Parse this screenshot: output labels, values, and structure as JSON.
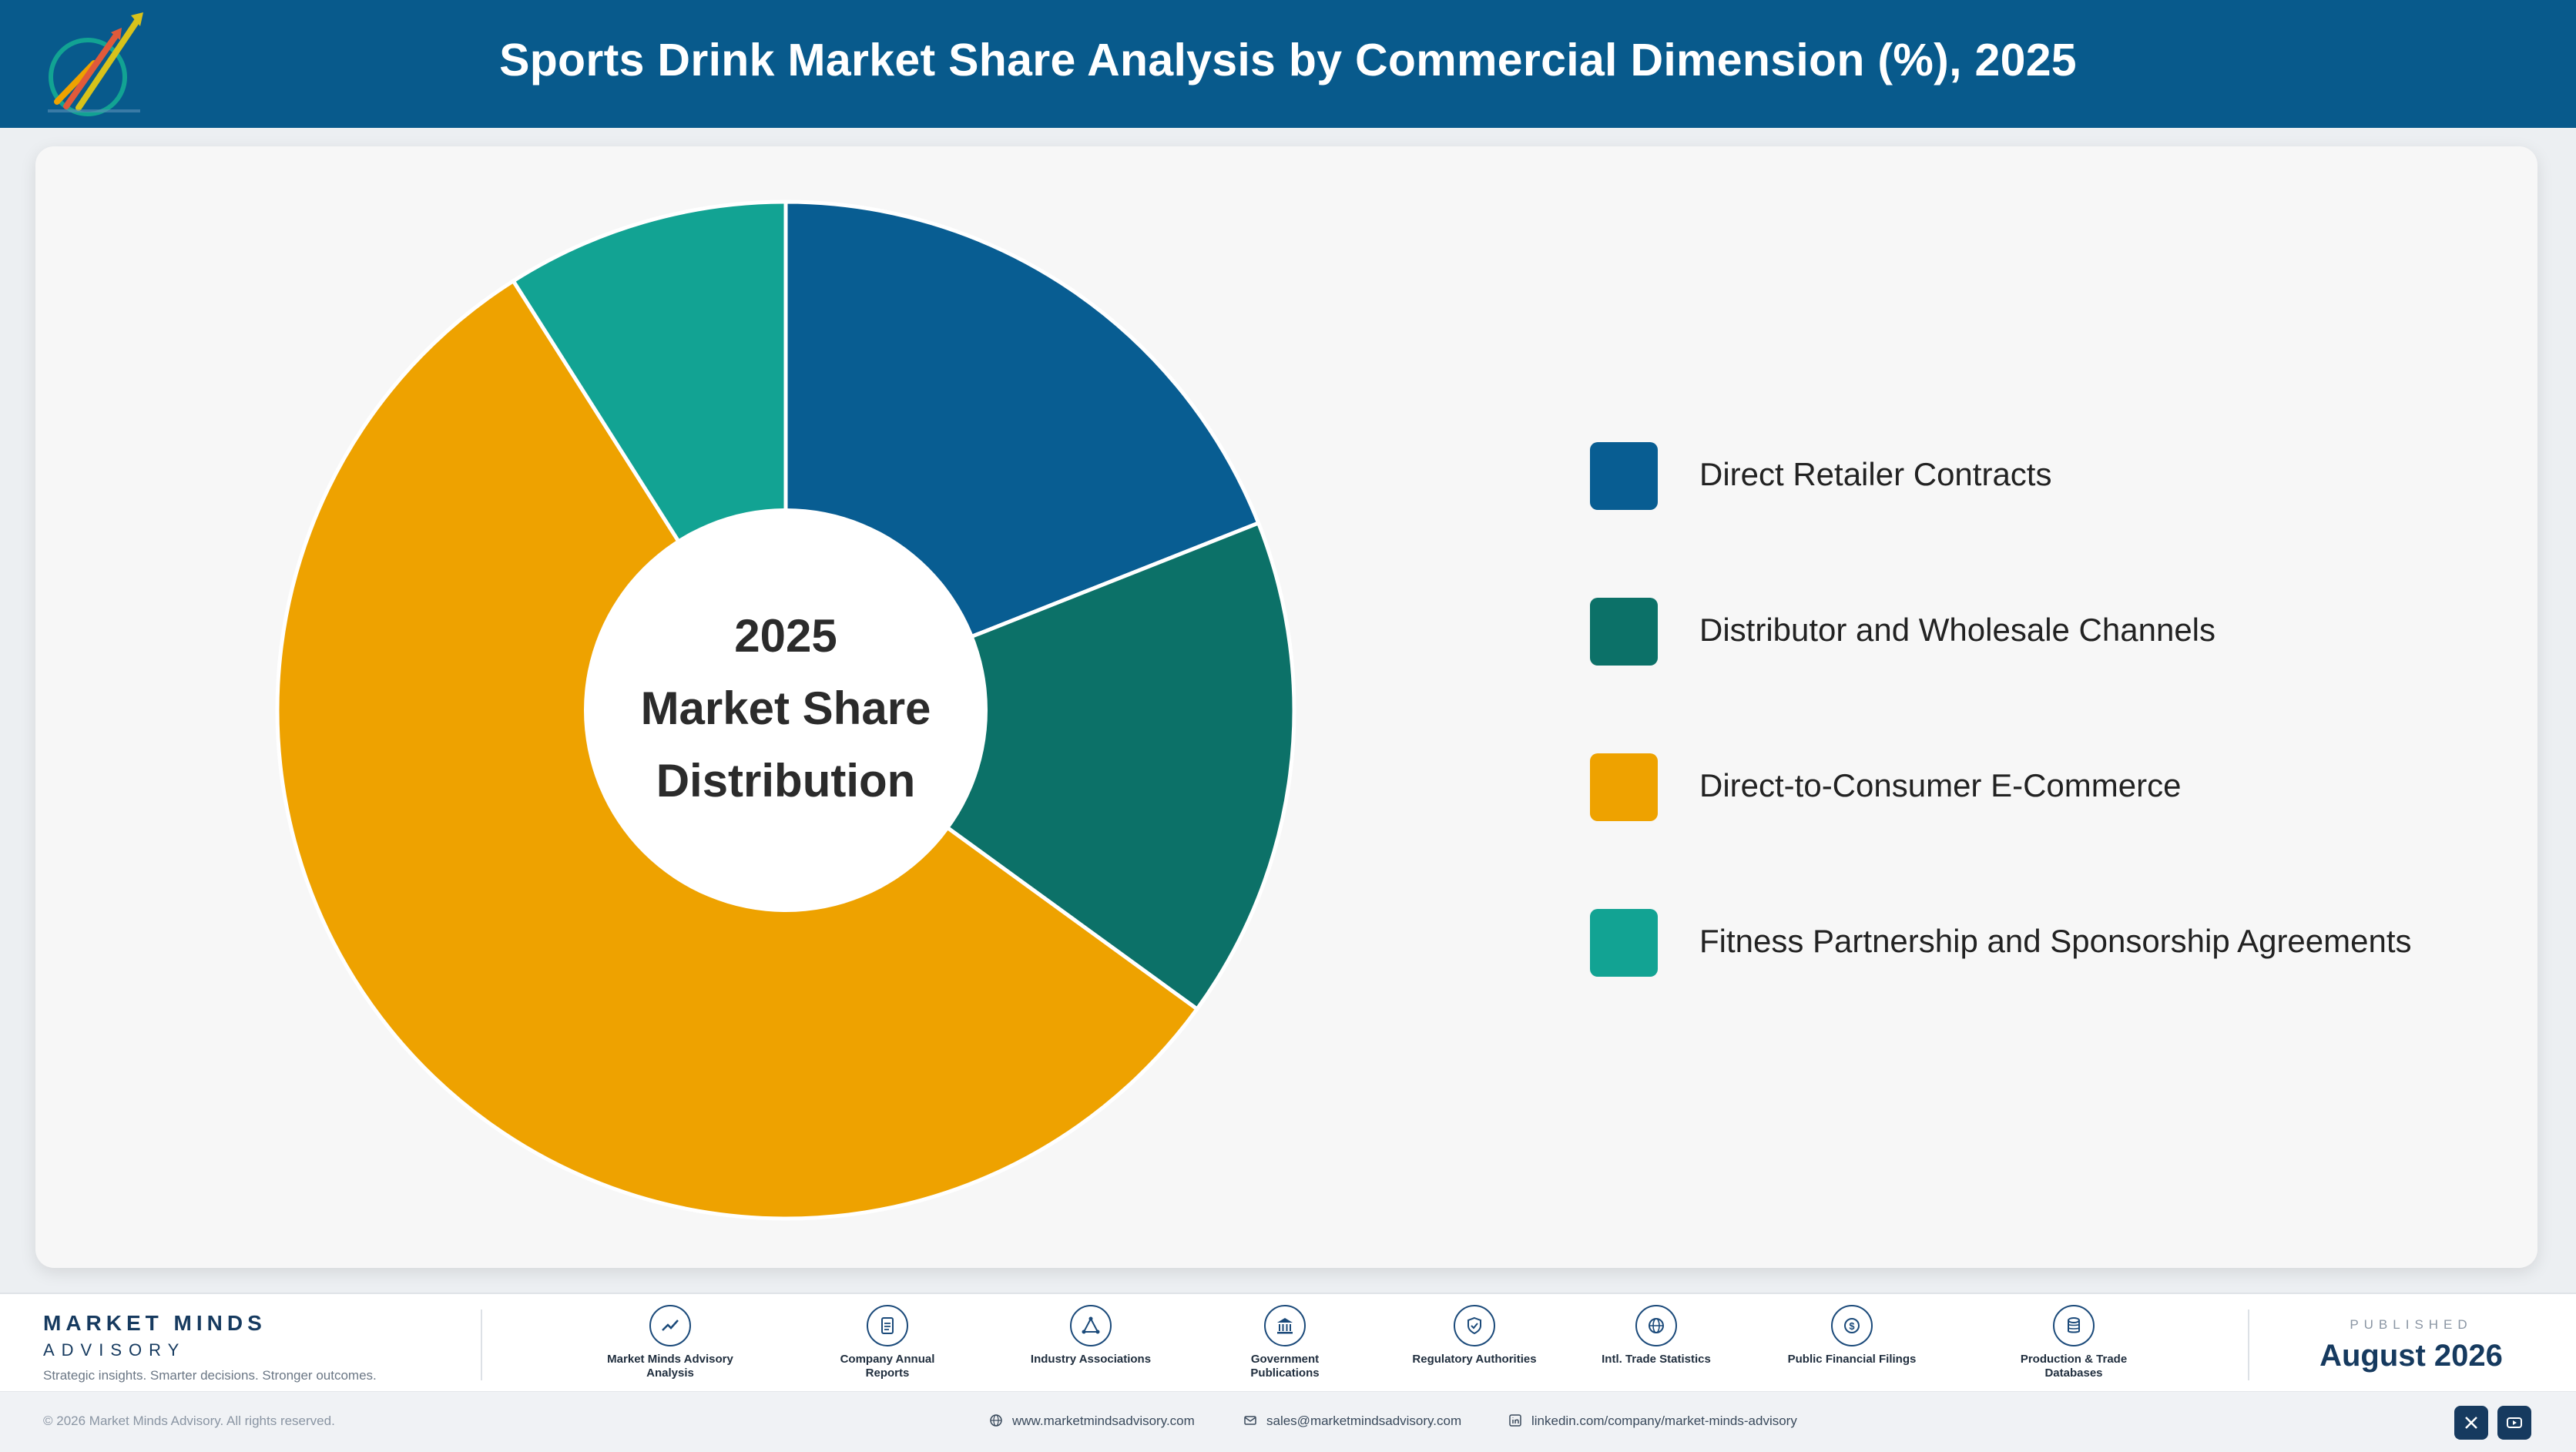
{
  "header": {
    "title": "Sports Drink Market Share Analysis by Commercial Dimension (%), 2025",
    "logo_text": "Market Minds Advisory"
  },
  "chart_data": {
    "type": "pie",
    "style": "donut",
    "title": "Sports Drink Market Share Analysis by Commercial Dimension (%), 2025",
    "center_label": [
      "2025",
      "Market Share",
      "Distribution"
    ],
    "categories": [
      "Direct Retailer Contracts",
      "Distributor and Wholesale Channels",
      "Direct-to-Consumer E-Commerce",
      "Fitness Partnership and Sponsorship Agreements"
    ],
    "values": [
      19,
      16,
      56,
      9
    ],
    "colors": [
      "#085d92",
      "#0c7168",
      "#eea200",
      "#12a393"
    ],
    "legend_position": "right"
  },
  "legend": [
    {
      "label": "Direct Retailer Contracts",
      "color": "#085d92"
    },
    {
      "label": "Distributor and Wholesale Channels",
      "color": "#0c7168"
    },
    {
      "label": "Direct-to-Consumer E-Commerce",
      "color": "#eea200"
    },
    {
      "label": "Fitness Partnership and Sponsorship Agreements",
      "color": "#12a393"
    }
  ],
  "footer": {
    "brand_name": "MARKET MINDS",
    "brand_sub": "ADVISORY",
    "tagline": "Strategic insights. Smarter decisions. Stronger outcomes.",
    "sources": [
      {
        "label": "Market Minds Advisory Analysis",
        "icon": "trend-line-icon"
      },
      {
        "label": "Company Annual Reports",
        "icon": "document-icon"
      },
      {
        "label": "Industry Associations",
        "icon": "network-triangle-icon"
      },
      {
        "label": "Government Publications",
        "icon": "government-building-icon"
      },
      {
        "label": "Regulatory Authorities",
        "icon": "shield-check-icon"
      },
      {
        "label": "Intl. Trade Statistics",
        "icon": "globe-icon"
      },
      {
        "label": "Public Financial Filings",
        "icon": "dollar-coin-icon"
      },
      {
        "label": "Production & Trade Databases",
        "icon": "database-icon"
      }
    ],
    "published_label": "PUBLISHED",
    "published_date": "August 2026",
    "copyright": "© 2026 Market Minds Advisory. All rights reserved.",
    "website": "www.marketmindsadvisory.com",
    "email": "sales@marketmindsadvisory.com",
    "linkedin": "linkedin.com/company/market-minds-advisory"
  }
}
